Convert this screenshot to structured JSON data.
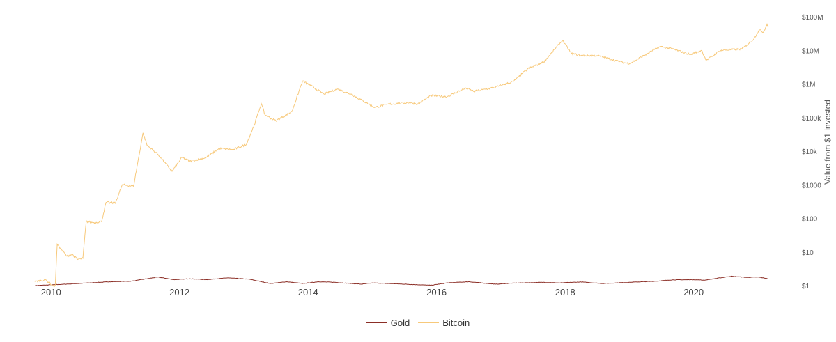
{
  "chart_data": {
    "type": "line",
    "title": "",
    "xlabel": "",
    "ylabel": "Value from $1 invested",
    "y_scale": "log",
    "ylim": [
      1,
      100000000
    ],
    "y_ticks": [
      {
        "value": 1,
        "label": "$1"
      },
      {
        "value": 10,
        "label": "$10"
      },
      {
        "value": 100,
        "label": "$100"
      },
      {
        "value": 1000,
        "label": "$1000"
      },
      {
        "value": 10000,
        "label": "$10k"
      },
      {
        "value": 100000,
        "label": "$100k"
      },
      {
        "value": 1000000,
        "label": "$1M"
      },
      {
        "value": 10000000,
        "label": "$10M"
      },
      {
        "value": 100000000,
        "label": "$100M"
      }
    ],
    "xlim": [
      "2009-10-01",
      "2021-03-01"
    ],
    "x_ticks": [
      "2010",
      "2012",
      "2014",
      "2016",
      "2018",
      "2020"
    ],
    "grid": false,
    "legend_position": "bottom-center",
    "series": [
      {
        "name": "Gold",
        "color": "#8b2e26",
        "points": [
          [
            "2009-10-01",
            1.0
          ],
          [
            "2010-01-01",
            1.05
          ],
          [
            "2010-06-01",
            1.15
          ],
          [
            "2010-12-01",
            1.3
          ],
          [
            "2011-04-01",
            1.35
          ],
          [
            "2011-09-01",
            1.8
          ],
          [
            "2011-12-01",
            1.5
          ],
          [
            "2012-03-01",
            1.6
          ],
          [
            "2012-06-01",
            1.5
          ],
          [
            "2012-10-01",
            1.7
          ],
          [
            "2013-02-01",
            1.55
          ],
          [
            "2013-06-01",
            1.15
          ],
          [
            "2013-09-01",
            1.3
          ],
          [
            "2013-12-01",
            1.15
          ],
          [
            "2014-03-01",
            1.3
          ],
          [
            "2014-06-01",
            1.25
          ],
          [
            "2014-11-01",
            1.1
          ],
          [
            "2015-01-01",
            1.2
          ],
          [
            "2015-06-01",
            1.12
          ],
          [
            "2015-12-01",
            1.02
          ],
          [
            "2016-03-01",
            1.2
          ],
          [
            "2016-07-01",
            1.3
          ],
          [
            "2016-12-01",
            1.1
          ],
          [
            "2017-03-01",
            1.18
          ],
          [
            "2017-09-01",
            1.25
          ],
          [
            "2017-12-01",
            1.2
          ],
          [
            "2018-04-01",
            1.28
          ],
          [
            "2018-08-01",
            1.15
          ],
          [
            "2019-01-01",
            1.25
          ],
          [
            "2019-06-01",
            1.35
          ],
          [
            "2019-09-01",
            1.48
          ],
          [
            "2020-01-01",
            1.5
          ],
          [
            "2020-03-01",
            1.45
          ],
          [
            "2020-08-01",
            1.9
          ],
          [
            "2020-11-01",
            1.75
          ],
          [
            "2021-01-01",
            1.8
          ],
          [
            "2021-03-01",
            1.6
          ]
        ]
      },
      {
        "name": "Bitcoin",
        "color": "#f7c97b",
        "points": [
          [
            "2009-10-01",
            1.3
          ],
          [
            "2009-12-01",
            1.5
          ],
          [
            "2010-01-10",
            1.0
          ],
          [
            "2010-01-25",
            1.0
          ],
          [
            "2010-02-05",
            17
          ],
          [
            "2010-03-01",
            12
          ],
          [
            "2010-04-01",
            7.5
          ],
          [
            "2010-05-01",
            8.5
          ],
          [
            "2010-06-01",
            6
          ],
          [
            "2010-07-01",
            6.5
          ],
          [
            "2010-07-20",
            80
          ],
          [
            "2010-09-01",
            75
          ],
          [
            "2010-10-15",
            80
          ],
          [
            "2010-11-10",
            300
          ],
          [
            "2011-01-01",
            280
          ],
          [
            "2011-02-10",
            1000
          ],
          [
            "2011-04-15",
            900
          ],
          [
            "2011-06-08",
            35000
          ],
          [
            "2011-07-01",
            15000
          ],
          [
            "2011-09-01",
            8000
          ],
          [
            "2011-11-20",
            2500
          ],
          [
            "2012-01-15",
            6500
          ],
          [
            "2012-03-01",
            5000
          ],
          [
            "2012-06-01",
            6500
          ],
          [
            "2012-08-15",
            12000
          ],
          [
            "2012-11-01",
            11000
          ],
          [
            "2013-01-15",
            16000
          ],
          [
            "2013-03-01",
            60000
          ],
          [
            "2013-04-10",
            260000
          ],
          [
            "2013-05-01",
            120000
          ],
          [
            "2013-07-01",
            80000
          ],
          [
            "2013-10-01",
            150000
          ],
          [
            "2013-11-30",
            1200000
          ],
          [
            "2014-01-15",
            900000
          ],
          [
            "2014-04-01",
            500000
          ],
          [
            "2014-06-15",
            700000
          ],
          [
            "2014-09-01",
            500000
          ],
          [
            "2015-01-15",
            200000
          ],
          [
            "2015-04-01",
            250000
          ],
          [
            "2015-08-01",
            280000
          ],
          [
            "2015-09-15",
            250000
          ],
          [
            "2015-12-01",
            450000
          ],
          [
            "2016-03-01",
            420000
          ],
          [
            "2016-06-15",
            750000
          ],
          [
            "2016-08-01",
            600000
          ],
          [
            "2016-12-01",
            800000
          ],
          [
            "2017-03-15",
            1200000
          ],
          [
            "2017-06-01",
            2800000
          ],
          [
            "2017-09-01",
            4500000
          ],
          [
            "2017-12-17",
            20000000
          ],
          [
            "2018-02-05",
            8000000
          ],
          [
            "2018-04-01",
            7000000
          ],
          [
            "2018-07-01",
            7000000
          ],
          [
            "2018-11-15",
            4500000
          ],
          [
            "2019-01-01",
            4000000
          ],
          [
            "2019-06-25",
            13000000
          ],
          [
            "2019-09-01",
            11000000
          ],
          [
            "2019-12-15",
            7500000
          ],
          [
            "2020-02-15",
            10000000
          ],
          [
            "2020-03-13",
            5000000
          ],
          [
            "2020-06-01",
            10000000
          ],
          [
            "2020-10-01",
            11000000
          ],
          [
            "2020-12-01",
            20000000
          ],
          [
            "2021-01-08",
            40000000
          ],
          [
            "2021-02-01",
            35000000
          ],
          [
            "2021-02-21",
            60000000
          ],
          [
            "2021-03-01",
            50000000
          ]
        ]
      }
    ]
  }
}
